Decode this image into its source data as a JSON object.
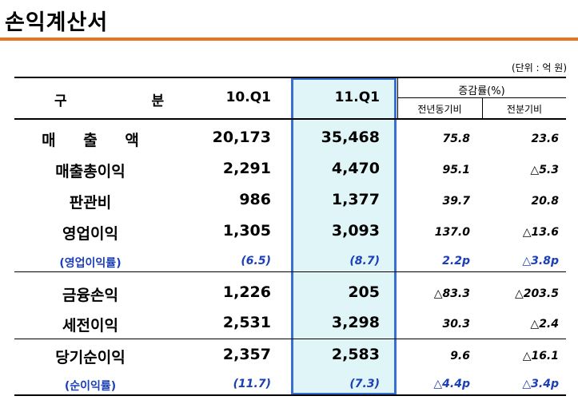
{
  "title": "손익계산서",
  "unit": "(단위 : 억 원)",
  "headers": {
    "category": "구 분",
    "col1": "10.Q1",
    "col2": "11.Q1",
    "change": "증감률(%)",
    "yoy": "전년동기비",
    "qoq": "전분기비"
  },
  "colors": {
    "accent": "#e8741f",
    "highlight_fill": "#dff5f8",
    "highlight_border": "#3a6fd2",
    "ratio_text": "#1a3fb8"
  },
  "rows": [
    {
      "label": "매 출 액",
      "q1_10": "20,173",
      "q1_11": "35,468",
      "yoy": "75.8",
      "qoq": "23.6"
    },
    {
      "label": "매출총이익",
      "q1_10": "2,291",
      "q1_11": "4,470",
      "yoy": "95.1",
      "qoq": "△5.3"
    },
    {
      "label": "판관비",
      "q1_10": "986",
      "q1_11": "1,377",
      "yoy": "39.7",
      "qoq": "20.8"
    },
    {
      "label": "영업이익",
      "q1_10": "1,305",
      "q1_11": "3,093",
      "yoy": "137.0",
      "qoq": "△13.6"
    },
    {
      "label": "(영업이익률)",
      "q1_10": "(6.5)",
      "q1_11": "(8.7)",
      "yoy": "2.2p",
      "qoq": "△3.8p"
    },
    {
      "label": "금융손익",
      "q1_10": "1,226",
      "q1_11": "205",
      "yoy": "△83.3",
      "qoq": "△203.5"
    },
    {
      "label": "세전이익",
      "q1_10": "2,531",
      "q1_11": "3,298",
      "yoy": "30.3",
      "qoq": "△2.4"
    },
    {
      "label": "당기순이익",
      "q1_10": "2,357",
      "q1_11": "2,583",
      "yoy": "9.6",
      "qoq": "△16.1"
    },
    {
      "label": "(순이익률)",
      "q1_10": "(11.7)",
      "q1_11": "(7.3)",
      "yoy": "△4.4p",
      "qoq": "△3.4p"
    }
  ]
}
